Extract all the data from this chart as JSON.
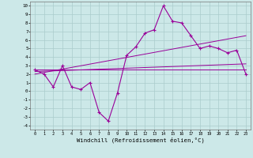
{
  "bg_color": "#cce8e8",
  "grid_color": "#aacccc",
  "line_color": "#990099",
  "xlabel": "Windchill (Refroidissement éolien,°C)",
  "xlim": [
    -0.5,
    23.5
  ],
  "ylim": [
    -4.5,
    10.5
  ],
  "xticks": [
    0,
    1,
    2,
    3,
    4,
    5,
    6,
    7,
    8,
    9,
    10,
    11,
    12,
    13,
    14,
    15,
    16,
    17,
    18,
    19,
    20,
    21,
    22,
    23
  ],
  "yticks": [
    -4,
    -3,
    -2,
    -1,
    0,
    1,
    2,
    3,
    4,
    5,
    6,
    7,
    8,
    9,
    10
  ],
  "main_x": [
    0,
    1,
    2,
    3,
    4,
    5,
    6,
    7,
    8,
    9,
    10,
    11,
    12,
    13,
    14,
    15,
    16,
    17,
    18,
    19,
    20,
    21,
    22,
    23
  ],
  "main_y": [
    2.5,
    2.0,
    0.5,
    3.0,
    0.5,
    0.2,
    1.0,
    -2.5,
    -3.5,
    -0.2,
    4.2,
    5.2,
    6.8,
    7.2,
    10.0,
    8.2,
    8.0,
    6.5,
    5.0,
    5.3,
    5.0,
    4.5,
    4.8,
    2.0
  ],
  "trend1_x": [
    0,
    23
  ],
  "trend1_y": [
    2.5,
    2.5
  ],
  "trend2_x": [
    0,
    23
  ],
  "trend2_y": [
    2.3,
    3.2
  ],
  "trend3_x": [
    0,
    23
  ],
  "trend3_y": [
    2.0,
    6.5
  ]
}
